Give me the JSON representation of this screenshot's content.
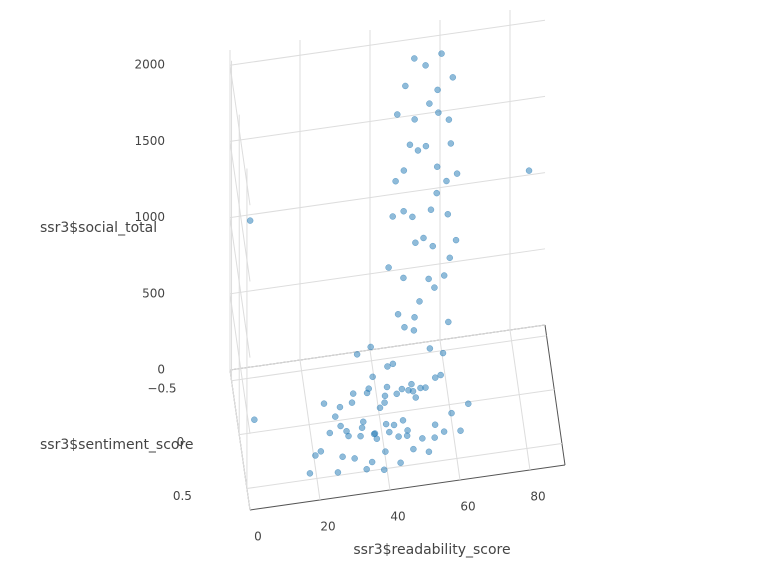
{
  "chart_data": {
    "type": "scatter3d",
    "x_title": "ssr3$readability_score",
    "y_title": "ssr3$sentiment_score",
    "z_title": "ssr3$social_total",
    "color": "#1f77b4",
    "xlim": [
      0,
      90
    ],
    "ylim": [
      -0.6,
      0.7
    ],
    "zlim": [
      0,
      2100
    ],
    "xticks": [
      0,
      20,
      40,
      60,
      80
    ],
    "yticks": [
      {
        "value": -0.5,
        "label": "−0.5"
      },
      0,
      0.5
    ],
    "zticks": [
      0,
      500,
      1000,
      1500,
      2000
    ],
    "grid": true,
    "x": [
      52,
      55,
      60,
      49,
      58,
      63,
      51,
      56,
      61,
      47,
      54,
      59,
      50,
      57,
      62,
      48,
      53,
      60,
      46,
      55,
      64,
      50,
      58,
      45,
      53,
      61,
      49,
      56,
      63,
      47,
      52,
      59,
      44,
      55,
      62,
      50,
      57,
      46,
      60,
      53,
      48,
      58,
      51,
      55,
      4,
      3,
      38,
      85,
      35,
      40,
      42,
      45,
      38,
      30,
      33,
      47,
      50,
      28,
      25,
      43,
      48,
      52,
      36,
      41,
      39,
      46,
      55,
      32,
      29,
      44,
      37,
      51,
      34,
      42,
      49,
      27,
      40,
      53,
      22,
      57,
      31,
      45,
      38,
      35,
      60,
      26,
      48,
      43,
      20,
      58,
      39,
      33,
      47,
      44,
      54,
      36,
      41,
      50,
      24,
      62,
      30,
      46,
      18,
      65,
      52,
      37,
      42,
      34,
      56,
      28
    ],
    "y": [
      -0.45,
      -0.4,
      -0.5,
      -0.35,
      -0.3,
      -0.45,
      -0.2,
      -0.38,
      -0.25,
      -0.42,
      -0.15,
      -0.48,
      -0.28,
      -0.1,
      -0.35,
      -0.22,
      -0.44,
      -0.18,
      -0.3,
      -0.05,
      -0.4,
      -0.12,
      -0.36,
      -0.26,
      -0.08,
      -0.32,
      -0.46,
      -0.16,
      -0.24,
      -0.02,
      -0.38,
      -0.1,
      -0.3,
      -0.2,
      -0.42,
      0.02,
      -0.28,
      -0.14,
      -0.06,
      -0.34,
      -0.18,
      0.05,
      -0.25,
      -0.12,
      -0.2,
      0.3,
      -0.1,
      -0.5,
      0.1,
      0.05,
      0.2,
      0,
      0.3,
      0.15,
      -0.1,
      0.25,
      0.1,
      0.35,
      0.2,
      -0.15,
      0.4,
      -0.05,
      0.45,
      0.12,
      -0.2,
      0.18,
      0.22,
      0.05,
      -0.05,
      0.35,
      0,
      0.3,
      0.25,
      -0.08,
      0.15,
      0.1,
      0.4,
      0.05,
      0.3,
      0.35,
      0.45,
      -0.25,
      0.18,
      -0.3,
      0.15,
      0.5,
      0.08,
      0.28,
      0.4,
      -0.1,
      0.55,
      0.38,
      -0.12,
      0.48,
      0.42,
      0.12,
      0.22,
      -0.18,
      0.05,
      0.28,
      0.28,
      0.45,
      0.5,
      0.1,
      0.5,
      0.35,
      0.05,
      0.55,
      0,
      0.22
    ],
    "z": [
      1980,
      1960,
      1950,
      1880,
      1860,
      1820,
      1760,
      1720,
      1690,
      1650,
      1610,
      1580,
      1540,
      1500,
      1460,
      1420,
      1380,
      1340,
      1300,
      1260,
      1220,
      1180,
      1140,
      1100,
      1060,
      1020,
      980,
      940,
      900,
      860,
      820,
      780,
      740,
      700,
      660,
      620,
      580,
      540,
      500,
      460,
      420,
      380,
      340,
      300,
      1250,
      300,
      380,
      1100,
      40,
      80,
      20,
      120,
      60,
      30,
      90,
      50,
      150,
      10,
      70,
      200,
      30,
      100,
      20,
      160,
      110,
      70,
      40,
      140,
      50,
      90,
      180,
      20,
      110,
      60,
      230,
      100,
      40,
      170,
      30,
      80,
      60,
      140,
      10,
      200,
      50,
      20,
      190,
      120,
      80,
      130,
      30,
      150,
      60,
      10,
      100,
      240,
      90,
      40,
      160,
      20,
      90,
      160,
      40,
      60,
      70,
      130,
      210,
      50,
      190,
      120
    ]
  }
}
